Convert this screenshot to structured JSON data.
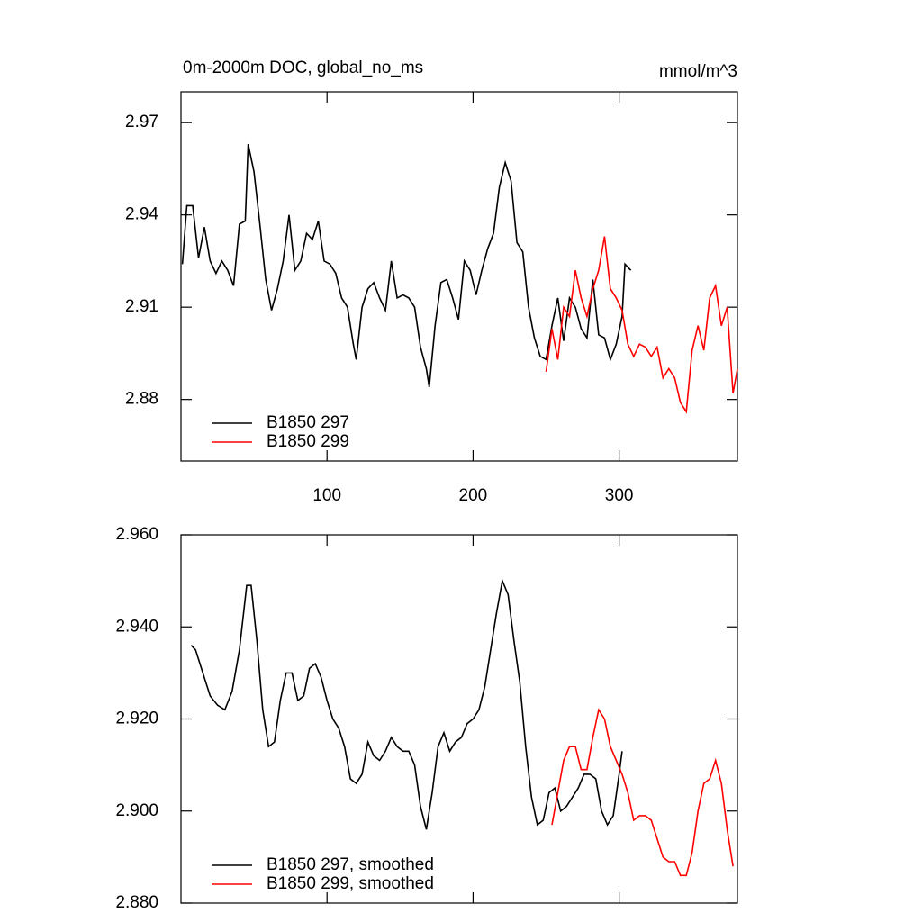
{
  "chart_data": [
    {
      "type": "line",
      "title": "0m-2000m DOC, global_no_ms",
      "units": "mmol/m^3",
      "xlim": [
        0,
        381
      ],
      "xticks": [
        100,
        200,
        300
      ],
      "ylim": [
        2.86,
        2.98
      ],
      "yticks": [
        2.88,
        2.91,
        2.94,
        2.97
      ],
      "legend": "lower left",
      "series": [
        {
          "name": "B1850 297",
          "color": "#000000",
          "x": [
            1,
            4,
            8,
            12,
            16,
            20,
            24,
            28,
            32,
            36,
            40,
            44,
            46,
            50,
            54,
            58,
            62,
            66,
            70,
            74,
            78,
            82,
            86,
            90,
            94,
            98,
            102,
            106,
            110,
            114,
            118,
            120,
            124,
            128,
            132,
            136,
            140,
            144,
            148,
            152,
            156,
            160,
            164,
            168,
            170,
            174,
            178,
            182,
            186,
            190,
            194,
            198,
            202,
            206,
            210,
            214,
            218,
            222,
            226,
            230,
            234,
            238,
            242,
            246,
            250,
            254,
            258,
            262,
            266,
            270,
            274,
            278,
            282,
            286,
            290,
            294,
            298,
            302,
            304,
            308
          ],
          "values": [
            2.924,
            2.943,
            2.943,
            2.926,
            2.936,
            2.925,
            2.921,
            2.925,
            2.922,
            2.917,
            2.937,
            2.938,
            2.963,
            2.954,
            2.937,
            2.919,
            2.909,
            2.916,
            2.925,
            2.94,
            2.922,
            2.925,
            2.934,
            2.932,
            2.938,
            2.925,
            2.924,
            2.921,
            2.913,
            2.91,
            2.898,
            2.893,
            2.91,
            2.916,
            2.918,
            2.913,
            2.909,
            2.925,
            2.913,
            2.914,
            2.913,
            2.91,
            2.897,
            2.89,
            2.884,
            2.904,
            2.918,
            2.919,
            2.913,
            2.906,
            2.925,
            2.922,
            2.914,
            2.922,
            2.929,
            2.934,
            2.949,
            2.957,
            2.951,
            2.931,
            2.928,
            2.91,
            2.9,
            2.894,
            2.893,
            2.904,
            2.913,
            2.899,
            2.913,
            2.91,
            2.903,
            2.9,
            2.919,
            2.901,
            2.9,
            2.893,
            2.898,
            2.907,
            2.924,
            2.922
          ]
        },
        {
          "name": "B1850 299",
          "color": "#ff0000",
          "x": [
            250,
            254,
            258,
            262,
            266,
            270,
            274,
            278,
            282,
            286,
            290,
            294,
            298,
            302,
            306,
            310,
            314,
            318,
            322,
            326,
            330,
            334,
            338,
            342,
            346,
            350,
            354,
            358,
            362,
            366,
            370,
            374,
            378,
            381
          ],
          "values": [
            2.889,
            2.903,
            2.893,
            2.91,
            2.907,
            2.922,
            2.913,
            2.907,
            2.916,
            2.922,
            2.933,
            2.916,
            2.913,
            2.909,
            2.898,
            2.894,
            2.898,
            2.897,
            2.894,
            2.897,
            2.887,
            2.89,
            2.887,
            2.879,
            2.876,
            2.896,
            2.904,
            2.896,
            2.913,
            2.917,
            2.904,
            2.91,
            2.882,
            2.89
          ]
        }
      ]
    },
    {
      "type": "line",
      "xlim": [
        0,
        381
      ],
      "xticks": [
        100,
        200,
        300
      ],
      "xtick_labels": false,
      "ylim": [
        2.88,
        2.96
      ],
      "yticks": [
        {
          "value": 2.88,
          "label": "2.880"
        },
        {
          "value": 2.9,
          "label": "2.900"
        },
        {
          "value": 2.92,
          "label": "2.920"
        },
        {
          "value": 2.94,
          "label": "2.940"
        },
        {
          "value": 2.96,
          "label": "2.960"
        }
      ],
      "legend": "lower left",
      "series": [
        {
          "name": "B1850 297, smoothed",
          "color": "#000000",
          "x": [
            7,
            10,
            15,
            20,
            25,
            30,
            35,
            40,
            45,
            48,
            52,
            56,
            60,
            64,
            68,
            72,
            76,
            80,
            84,
            88,
            92,
            96,
            100,
            104,
            108,
            112,
            116,
            120,
            124,
            128,
            132,
            136,
            140,
            144,
            148,
            152,
            156,
            160,
            164,
            168,
            172,
            176,
            180,
            184,
            188,
            192,
            196,
            200,
            204,
            208,
            212,
            216,
            220,
            224,
            228,
            232,
            236,
            240,
            244,
            248,
            252,
            256,
            260,
            264,
            268,
            272,
            276,
            280,
            284,
            288,
            292,
            296,
            300,
            302
          ],
          "values": [
            2.936,
            2.935,
            2.93,
            2.925,
            2.923,
            2.922,
            2.926,
            2.935,
            2.949,
            2.949,
            2.937,
            2.922,
            2.914,
            2.915,
            2.924,
            2.93,
            2.93,
            2.924,
            2.925,
            2.931,
            2.932,
            2.929,
            2.924,
            2.92,
            2.918,
            2.914,
            2.907,
            2.906,
            2.908,
            2.915,
            2.912,
            2.911,
            2.913,
            2.916,
            2.914,
            2.913,
            2.913,
            2.91,
            2.901,
            2.896,
            2.904,
            2.914,
            2.917,
            2.913,
            2.915,
            2.916,
            2.919,
            2.92,
            2.922,
            2.927,
            2.935,
            2.943,
            2.95,
            2.947,
            2.937,
            2.928,
            2.914,
            2.903,
            2.897,
            2.898,
            2.904,
            2.905,
            2.9,
            2.901,
            2.903,
            2.905,
            2.908,
            2.908,
            2.907,
            2.9,
            2.897,
            2.899,
            2.908,
            2.913
          ]
        },
        {
          "name": "B1850 299, smoothed",
          "color": "#ff0000",
          "x": [
            254,
            258,
            262,
            266,
            270,
            274,
            278,
            282,
            286,
            290,
            294,
            298,
            302,
            306,
            310,
            314,
            318,
            322,
            326,
            330,
            334,
            338,
            342,
            346,
            350,
            354,
            358,
            362,
            366,
            370,
            374,
            378
          ],
          "values": [
            2.897,
            2.904,
            2.911,
            2.914,
            2.914,
            2.909,
            2.909,
            2.916,
            2.922,
            2.92,
            2.914,
            2.911,
            2.908,
            2.904,
            2.898,
            2.899,
            2.899,
            2.898,
            2.894,
            2.89,
            2.889,
            2.889,
            2.886,
            2.886,
            2.891,
            2.9,
            2.906,
            2.907,
            2.911,
            2.906,
            2.896,
            2.888
          ]
        }
      ]
    }
  ]
}
